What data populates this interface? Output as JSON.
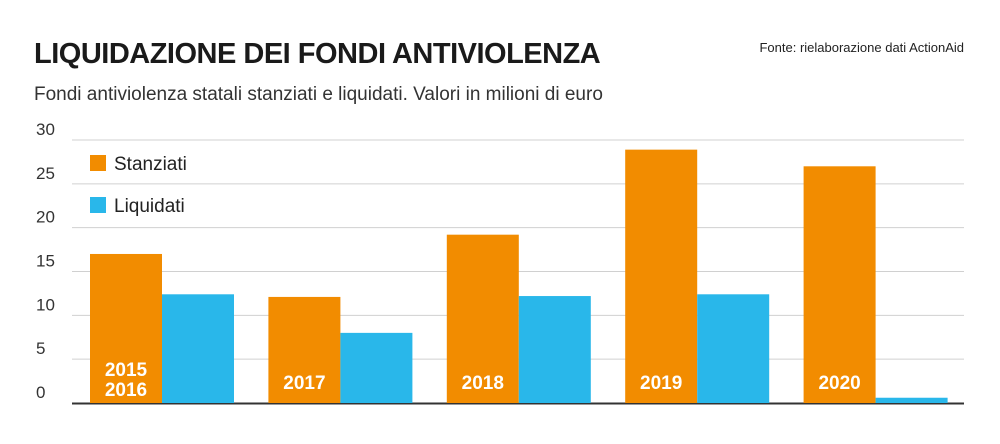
{
  "header": {
    "title": "LIQUIDAZIONE DEI FONDI ANTIVIOLENZA",
    "subtitle": "Fondi antiviolenza statali stanziati e liquidati. Valori in milioni di euro",
    "source": "Fonte: rielaborazione dati ActionAid"
  },
  "colors": {
    "stanziati": "#f28c00",
    "liquidati": "#29b7ea",
    "grid": "#d0d0d0",
    "axis": "#333333"
  },
  "chart_data": {
    "type": "bar",
    "title": "LIQUIDAZIONE DEI FONDI ANTIVIOLENZA",
    "subtitle": "Fondi antiviolenza statali stanziati e liquidati. Valori in milioni di euro",
    "categories": [
      "2015\n2016",
      "2017",
      "2018",
      "2019",
      "2020"
    ],
    "series": [
      {
        "name": "Stanziati",
        "values": [
          17.0,
          12.1,
          19.2,
          28.9,
          27.0
        ]
      },
      {
        "name": "Liquidati",
        "values": [
          12.4,
          8.0,
          12.2,
          12.4,
          0.6
        ]
      }
    ],
    "yticks": [
      0,
      5,
      10,
      15,
      20,
      25,
      30
    ],
    "ylim": [
      0,
      30
    ],
    "xlabel": "",
    "ylabel": "",
    "grid": true,
    "legend": "top-left"
  }
}
